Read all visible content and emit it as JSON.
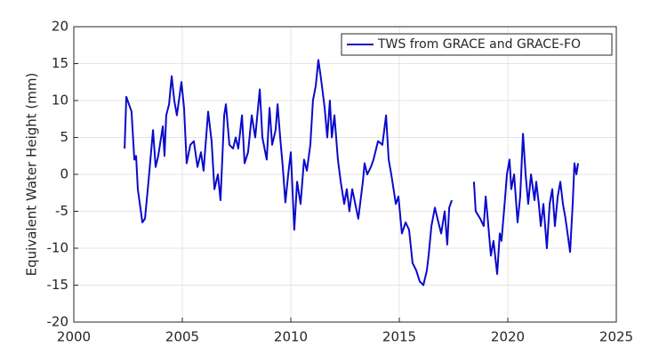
{
  "chart_data": {
    "type": "line",
    "y_label": "Equivalent Water Height (mm)",
    "x": [
      2002.34,
      2002.42,
      2002.66,
      2002.79,
      2002.87,
      2002.95,
      2003.16,
      2003.28,
      2003.44,
      2003.65,
      2003.77,
      2003.89,
      2004.1,
      2004.18,
      2004.26,
      2004.39,
      2004.51,
      2004.63,
      2004.75,
      2004.96,
      2005.08,
      2005.2,
      2005.37,
      2005.53,
      2005.7,
      2005.86,
      2005.98,
      2006.19,
      2006.35,
      2006.48,
      2006.64,
      2006.76,
      2006.93,
      2007.01,
      2007.17,
      2007.34,
      2007.46,
      2007.58,
      2007.75,
      2007.87,
      2008.03,
      2008.2,
      2008.36,
      2008.57,
      2008.69,
      2008.89,
      2009.02,
      2009.14,
      2009.3,
      2009.39,
      2009.51,
      2009.63,
      2009.75,
      2009.88,
      2010.0,
      2010.16,
      2010.29,
      2010.45,
      2010.61,
      2010.74,
      2010.9,
      2011.02,
      2011.15,
      2011.27,
      2011.39,
      2011.56,
      2011.68,
      2011.8,
      2011.89,
      2012.01,
      2012.17,
      2012.3,
      2012.46,
      2012.58,
      2012.7,
      2012.83,
      2013.11,
      2013.32,
      2013.4,
      2013.52,
      2013.69,
      2013.81,
      2014.02,
      2014.22,
      2014.39,
      2014.51,
      2014.63,
      2014.84,
      2014.96,
      2015.12,
      2015.29,
      2015.45,
      2015.61,
      2015.78,
      2015.94,
      2016.11,
      2016.27,
      2016.35,
      2016.48,
      2016.64,
      2016.76,
      2016.93,
      2017.09,
      2017.21,
      2017.3,
      2017.42,
      2017.9,
      2018.44,
      2018.52,
      2018.73,
      2018.89,
      2018.98,
      2019.06,
      2019.22,
      2019.34,
      2019.51,
      2019.63,
      2019.71,
      2019.88,
      2019.96,
      2020.08,
      2020.16,
      2020.29,
      2020.45,
      2020.57,
      2020.7,
      2020.82,
      2020.94,
      2021.07,
      2021.23,
      2021.31,
      2021.43,
      2021.52,
      2021.64,
      2021.8,
      2021.93,
      2022.05,
      2022.17,
      2022.3,
      2022.42,
      2022.54,
      2022.66,
      2022.87,
      2022.99,
      2023.07,
      2023.16,
      2023.24
    ],
    "series": [
      {
        "name": "TWS from GRACE and GRACE-FO",
        "color": "#0a0acc",
        "values": [
          3.5,
          10.5,
          8.5,
          2,
          2.5,
          -2,
          -6.5,
          -6,
          -1,
          6,
          1,
          2.5,
          6.5,
          2.5,
          8,
          9.5,
          13.3,
          10,
          8,
          12.5,
          9,
          1.5,
          4,
          4.5,
          1,
          3,
          0.5,
          8.5,
          4.5,
          -2,
          0,
          -3.5,
          8,
          9.5,
          4,
          3.5,
          5,
          3.5,
          8,
          1.5,
          3,
          8,
          5,
          11.5,
          5,
          2,
          9,
          4,
          6,
          9.5,
          5,
          1,
          -3.8,
          0,
          3,
          -7.5,
          -1,
          -4,
          2,
          0.5,
          4,
          10,
          12,
          15.5,
          13,
          9,
          5,
          10,
          5,
          8,
          2,
          -1,
          -4,
          -2,
          -5,
          -2,
          -6,
          -1,
          1.5,
          0,
          1,
          2,
          4.5,
          4,
          8,
          2,
          0,
          -4,
          -3,
          -8,
          -6.5,
          -7.5,
          -12,
          -13,
          -14.5,
          -15,
          -13,
          -11,
          -7,
          -4.5,
          -6,
          -8,
          -5,
          -9.5,
          -4.5,
          -3.5,
          null,
          -1,
          -5,
          -6,
          -7,
          -3,
          -5.5,
          -11,
          -9,
          -13.5,
          -8,
          -9,
          -3,
          0,
          2,
          -2,
          0,
          -6.5,
          -3,
          5.5,
          0,
          -4,
          0,
          -3.5,
          -1,
          -4,
          -7,
          -4,
          -10,
          -4,
          -2,
          -7,
          -3,
          -1,
          -4,
          -6,
          -10.5,
          -4,
          1.5,
          0,
          1.5
        ]
      }
    ],
    "xlim": [
      2000,
      2025
    ],
    "xticks": [
      2000,
      2005,
      2010,
      2015,
      2020,
      2025
    ],
    "ylim": [
      -20,
      20
    ],
    "yticks": [
      -20,
      -15,
      -10,
      -5,
      0,
      5,
      10,
      15,
      20
    ],
    "grid": true,
    "legend": "northeast"
  }
}
